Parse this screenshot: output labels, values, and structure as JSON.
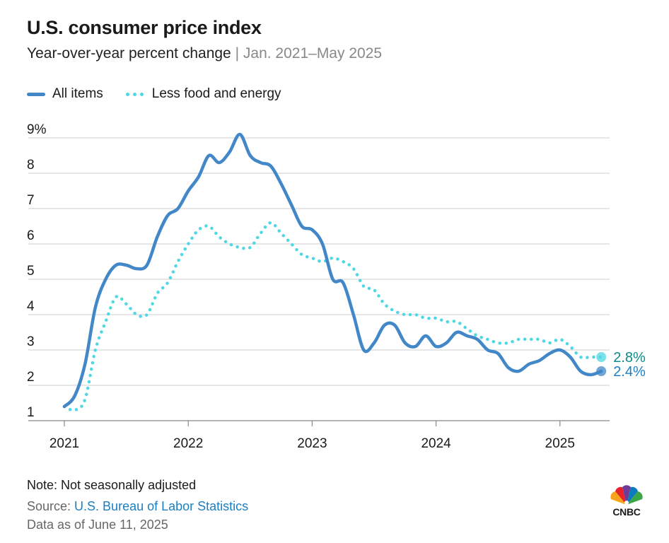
{
  "header": {
    "title": "U.S. consumer price index",
    "subtitle_main": "Year-over-year percent change",
    "subtitle_sep": "|",
    "subtitle_range": "Jan. 2021–May 2025"
  },
  "legend": {
    "all_items": "All items",
    "core": "Less food and energy"
  },
  "footer": {
    "note": "Note: Not seasonally adjusted",
    "source_prefix": "Source: ",
    "source_link": "U.S. Bureau of Labor Statistics",
    "as_of": "Data as of June 11, 2025",
    "logo": "CNBC"
  },
  "colors": {
    "all_items": "#4287c8",
    "core": "#4fd7e4",
    "all_items_label": "#1b7fc1",
    "core_label": "#0f8a88",
    "grid": "#d6d6d6"
  },
  "chart_data": {
    "type": "line",
    "title": "U.S. consumer price index",
    "subtitle": "Year-over-year percent change | Jan. 2021–May 2025",
    "xlabel": "",
    "ylabel": "",
    "ylim": [
      1,
      9
    ],
    "grid": true,
    "legend_position": "top-left",
    "y_ticks": [
      "1",
      "2",
      "3",
      "4",
      "5",
      "6",
      "7",
      "8",
      "9%"
    ],
    "x_ticks": [
      "2021",
      "2022",
      "2023",
      "2024",
      "2025"
    ],
    "x": [
      "2021-01",
      "2021-02",
      "2021-03",
      "2021-04",
      "2021-05",
      "2021-06",
      "2021-07",
      "2021-08",
      "2021-09",
      "2021-10",
      "2021-11",
      "2021-12",
      "2022-01",
      "2022-02",
      "2022-03",
      "2022-04",
      "2022-05",
      "2022-06",
      "2022-07",
      "2022-08",
      "2022-09",
      "2022-10",
      "2022-11",
      "2022-12",
      "2023-01",
      "2023-02",
      "2023-03",
      "2023-04",
      "2023-05",
      "2023-06",
      "2023-07",
      "2023-08",
      "2023-09",
      "2023-10",
      "2023-11",
      "2023-12",
      "2024-01",
      "2024-02",
      "2024-03",
      "2024-04",
      "2024-05",
      "2024-06",
      "2024-07",
      "2024-08",
      "2024-09",
      "2024-10",
      "2024-11",
      "2024-12",
      "2025-01",
      "2025-02",
      "2025-03",
      "2025-04",
      "2025-05"
    ],
    "series": [
      {
        "name": "All items",
        "values": [
          1.4,
          1.7,
          2.6,
          4.2,
          5.0,
          5.4,
          5.4,
          5.3,
          5.4,
          6.2,
          6.8,
          7.0,
          7.5,
          7.9,
          8.5,
          8.3,
          8.6,
          9.1,
          8.5,
          8.3,
          8.2,
          7.7,
          7.1,
          6.5,
          6.4,
          6.0,
          5.0,
          4.9,
          4.0,
          3.0,
          3.2,
          3.7,
          3.7,
          3.2,
          3.1,
          3.4,
          3.1,
          3.2,
          3.5,
          3.4,
          3.3,
          3.0,
          2.9,
          2.5,
          2.4,
          2.6,
          2.7,
          2.9,
          3.0,
          2.8,
          2.4,
          2.3,
          2.4
        ],
        "end_label": "2.4%"
      },
      {
        "name": "Less food and energy",
        "values": [
          1.4,
          1.3,
          1.6,
          3.0,
          3.8,
          4.5,
          4.3,
          4.0,
          4.0,
          4.6,
          4.9,
          5.5,
          6.0,
          6.4,
          6.5,
          6.2,
          6.0,
          5.9,
          5.9,
          6.3,
          6.6,
          6.3,
          6.0,
          5.7,
          5.6,
          5.5,
          5.6,
          5.5,
          5.3,
          4.8,
          4.7,
          4.3,
          4.1,
          4.0,
          4.0,
          3.9,
          3.9,
          3.8,
          3.8,
          3.6,
          3.4,
          3.3,
          3.2,
          3.2,
          3.3,
          3.3,
          3.3,
          3.2,
          3.3,
          3.1,
          2.8,
          2.8,
          2.8
        ],
        "end_label": "2.8%"
      }
    ]
  }
}
